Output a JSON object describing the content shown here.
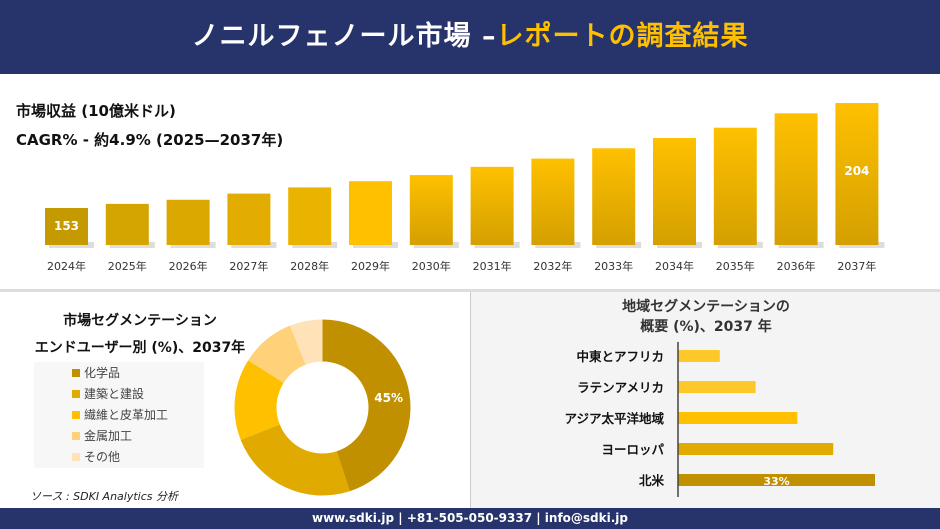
{
  "header": {
    "title_main": "ノニルフェノール市場 –",
    "title_accent": "レポートの調査結果"
  },
  "colors": {
    "navy": "#27336b",
    "accent": "#ffc000"
  },
  "revenue": {
    "label": "市場収益 (10億米ドル)",
    "cagr": "CAGR% - 約4.9% (2025—2037年)"
  },
  "chart_data": [
    {
      "type": "bar",
      "categories": [
        "2024年",
        "2025年",
        "2026年",
        "2027年",
        "2028年",
        "2029年",
        "2030年",
        "2031年",
        "2032年",
        "2033年",
        "2034年",
        "2035年",
        "2036年",
        "2037年"
      ],
      "values": [
        153,
        155,
        157,
        160,
        163,
        166,
        169,
        173,
        177,
        182,
        187,
        192,
        199,
        204
      ],
      "data_labels": {
        "0": "153",
        "13": "204"
      },
      "ylabel": "市場収益 (10億米ドル)"
    },
    {
      "type": "pie",
      "title": "市場セグメンテーション",
      "subtitle": "エンドユーザー別 (%)、2037年",
      "categories": [
        "化学品",
        "建築と建設",
        "繊維と皮革加工",
        "金属加工",
        "その他"
      ],
      "values": [
        45,
        24,
        15,
        10,
        6
      ],
      "data_labels": {
        "0": "45%"
      },
      "colors": [
        "#c09000",
        "#e0aa00",
        "#ffc000",
        "#ffd27a",
        "#ffe2b8"
      ]
    },
    {
      "type": "bar",
      "orientation": "horizontal",
      "title": "地域セグメンテーションの",
      "subtitle": "概要 (%)、2037 年",
      "categories": [
        "中東とアフリカ",
        "ラテンアメリカ",
        "アジア太平洋地域",
        "ヨーロッパ",
        "北米"
      ],
      "values": [
        7,
        13,
        20,
        26,
        33
      ],
      "data_labels": {
        "4": "33%"
      },
      "colors": [
        "#ffc82a",
        "#ffc82a",
        "#ffc000",
        "#e0aa00",
        "#c09000"
      ]
    }
  ],
  "source": "ソース : SDKI Analytics 分析",
  "footer": "www.sdki.jp | +81-505-050-9337 | info@sdki.jp"
}
